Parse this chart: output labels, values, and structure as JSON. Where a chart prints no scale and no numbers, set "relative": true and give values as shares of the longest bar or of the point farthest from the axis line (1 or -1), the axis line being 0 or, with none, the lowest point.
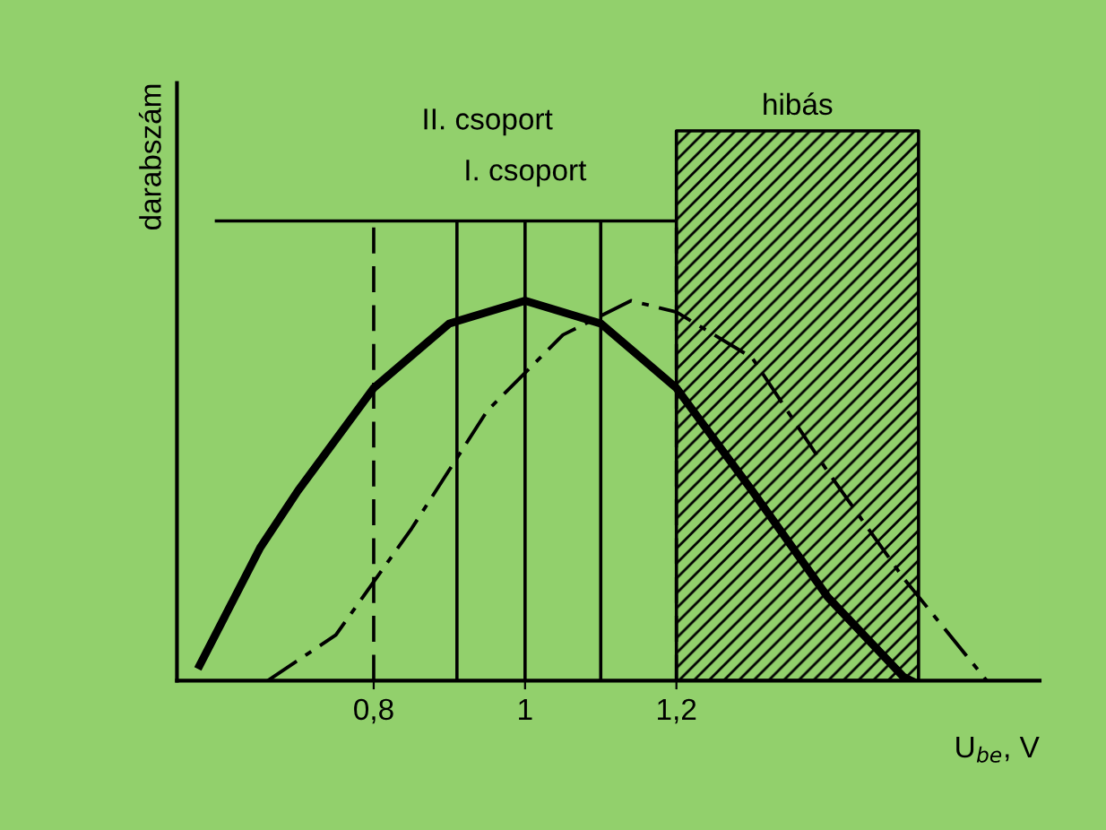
{
  "chart_data": {
    "type": "line",
    "relative": true,
    "xlabel": "U$_{be}$, V",
    "ylabel": "darabszám",
    "xlim": [
      0.54,
      1.68
    ],
    "xticks": [
      {
        "value": 0.8,
        "label": "0,8"
      },
      {
        "value": 1,
        "label": "1"
      },
      {
        "value": 1.2,
        "label": "1,2"
      }
    ],
    "tick_labels": "x",
    "grid": false,
    "legend": false,
    "marker": "none",
    "series": [
      {
        "color": "#000000",
        "line_style": "solid",
        "x": [
          0.57,
          0.65,
          0.7,
          0.8,
          0.9,
          1.0,
          1.1,
          1.2,
          1.3,
          1.4,
          1.5,
          1.51
        ],
        "values": [
          0.04,
          0.35,
          0.5,
          0.77,
          0.94,
          1.0,
          0.94,
          0.77,
          0.5,
          0.22,
          0.01,
          0
        ]
      },
      {
        "color": "#000000",
        "line_style": "dashdot",
        "x": [
          0.66,
          0.75,
          0.85,
          0.95,
          1.05,
          1.14,
          1.2,
          1.3,
          1.4,
          1.5,
          1.61
        ],
        "values": [
          0,
          0.12,
          0.4,
          0.71,
          0.91,
          1.0,
          0.97,
          0.85,
          0.55,
          0.27,
          0
        ]
      }
    ],
    "ref_lines": [
      {
        "axis": "y",
        "value": 1.21,
        "color": "#000000",
        "line_style": "solid"
      },
      {
        "axis": "x",
        "value": 0.8,
        "color": "#000000",
        "line_style": "dashed"
      },
      {
        "axis": "x",
        "value": 0.91,
        "color": "#000000",
        "line_style": "solid"
      },
      {
        "axis": "x",
        "value": 1.0,
        "color": "#000000",
        "line_style": "solid"
      },
      {
        "axis": "x",
        "value": 1.1,
        "color": "#000000",
        "line_style": "solid"
      },
      {
        "axis": "x",
        "value": 1.2,
        "color": "#000000",
        "line_style": "dashed"
      }
    ],
    "bands": [
      {
        "axis": "x",
        "from": 1.2,
        "to": 1.52,
        "label": "hibás",
        "color": "#000000"
      }
    ],
    "annotations": [
      "II. csoport",
      "I. csoport"
    ]
  }
}
